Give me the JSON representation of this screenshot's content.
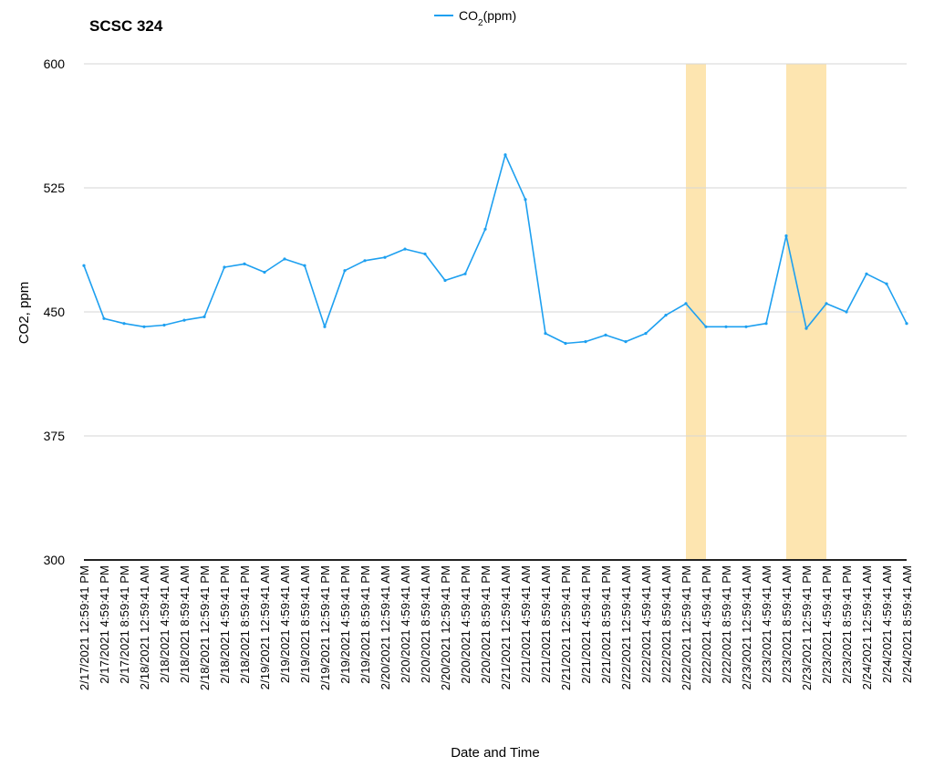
{
  "chart_data": {
    "type": "line",
    "title": "SCSC 324",
    "xlabel": "Date and Time",
    "ylabel": "CO2, ppm",
    "ylim": [
      300,
      600
    ],
    "yticks": [
      300,
      375,
      450,
      525,
      600
    ],
    "grid": "horizontal",
    "legend": {
      "position": "top-center",
      "label_base": "CO",
      "label_sub": "2",
      "label_rest": "(ppm)"
    },
    "x_tick_labels": [
      "2/17/2021 12:59:41 PM",
      "2/17/2021 4:59:41 PM",
      "2/17/2021 8:59:41 PM",
      "2/18/2021 12:59:41 AM",
      "2/18/2021 4:59:41 AM",
      "2/18/2021 8:59:41 AM",
      "2/18/2021 12:59:41 PM",
      "2/18/2021 4:59:41 PM",
      "2/18/2021 8:59:41 PM",
      "2/19/2021 12:59:41 AM",
      "2/19/2021 4:59:41 AM",
      "2/19/2021 8:59:41 AM",
      "2/19/2021 12:59:41 PM",
      "2/19/2021 4:59:41 PM",
      "2/19/2021 8:59:41 PM",
      "2/20/2021 12:59:41 AM",
      "2/20/2021 4:59:41 AM",
      "2/20/2021 8:59:41 AM",
      "2/20/2021 12:59:41 PM",
      "2/20/2021 4:59:41 PM",
      "2/20/2021 8:59:41 PM",
      "2/21/2021 12:59:41 AM",
      "2/21/2021 4:59:41 AM",
      "2/21/2021 8:59:41 AM",
      "2/21/2021 12:59:41 PM",
      "2/21/2021 4:59:41 PM",
      "2/21/2021 8:59:41 PM",
      "2/22/2021 12:59:41 AM",
      "2/22/2021 4:59:41 AM",
      "2/22/2021 8:59:41 AM",
      "2/22/2021 12:59:41 PM",
      "2/22/2021 4:59:41 PM",
      "2/22/2021 8:59:41 PM",
      "2/23/2021 12:59:41 AM",
      "2/23/2021 4:59:41 AM",
      "2/23/2021 8:59:41 AM",
      "2/23/2021 12:59:41 PM",
      "2/23/2021 4:59:41 PM",
      "2/23/2021 8:59:41 PM",
      "2/24/2021 12:59:41 AM",
      "2/24/2021 4:59:41 AM",
      "2/24/2021 8:59:41 AM"
    ],
    "highlight_ranges": [
      {
        "from": "2/22/2021 12:59:41 PM",
        "to": "2/22/2021 4:59:41 PM"
      },
      {
        "from": "2/23/2021 8:59:41 AM",
        "to": "2/23/2021 4:59:41 PM"
      }
    ],
    "series": [
      {
        "name": "CO2(ppm)",
        "x": [
          "2/17/2021 12:59:41 PM",
          "2/17/2021 4:59:41 PM",
          "2/17/2021 8:59:41 PM",
          "2/18/2021 12:59:41 AM",
          "2/18/2021 4:59:41 AM",
          "2/18/2021 8:59:41 AM",
          "2/18/2021 12:59:41 PM",
          "2/18/2021 4:59:41 PM",
          "2/18/2021 8:59:41 PM",
          "2/19/2021 12:59:41 AM",
          "2/19/2021 4:59:41 AM",
          "2/19/2021 8:59:41 AM",
          "2/19/2021 12:59:41 PM",
          "2/19/2021 4:59:41 PM",
          "2/19/2021 8:59:41 PM",
          "2/20/2021 12:59:41 AM",
          "2/20/2021 4:59:41 AM",
          "2/20/2021 8:59:41 AM",
          "2/20/2021 12:59:41 PM",
          "2/20/2021 4:59:41 PM",
          "2/20/2021 8:59:41 PM",
          "2/21/2021 12:59:41 AM",
          "2/21/2021 4:59:41 AM",
          "2/21/2021 8:59:41 AM",
          "2/21/2021 12:59:41 PM",
          "2/21/2021 4:59:41 PM",
          "2/21/2021 8:59:41 PM",
          "2/22/2021 12:59:41 AM",
          "2/22/2021 4:59:41 AM",
          "2/22/2021 8:59:41 AM",
          "2/22/2021 12:59:41 PM",
          "2/22/2021 4:59:41 PM",
          "2/22/2021 8:59:41 PM",
          "2/23/2021 12:59:41 AM",
          "2/23/2021 4:59:41 AM",
          "2/23/2021 8:59:41 AM",
          "2/23/2021 12:59:41 PM",
          "2/23/2021 4:59:41 PM",
          "2/23/2021 8:59:41 PM",
          "2/24/2021 12:59:41 AM",
          "2/24/2021 4:59:41 AM",
          "2/24/2021 8:59:41 AM"
        ],
        "values": [
          478,
          446,
          443,
          441,
          442,
          445,
          447,
          477,
          479,
          474,
          482,
          478,
          441,
          475,
          481,
          483,
          488,
          485,
          469,
          473,
          500,
          545,
          518,
          437,
          431,
          432,
          436,
          432,
          437,
          448,
          455,
          441,
          441,
          441,
          443,
          496,
          440,
          455,
          450,
          473,
          467,
          443
        ],
        "color": "#1ea0f0"
      }
    ],
    "highlight_color": "#fde5b0",
    "line_color": "#1ea0f0",
    "grid_color": "#d6d6d6"
  }
}
